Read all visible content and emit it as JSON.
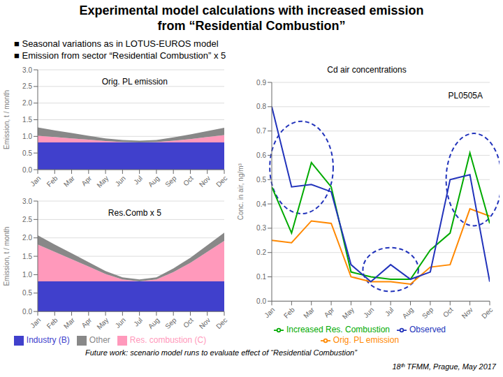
{
  "title": "Experimental model calculations with increased emission\nfrom “Residential Combustion”",
  "annotations": [
    "■ Seasonal variations as in LOTUS-EUROS model",
    "■ Emission from sector “Residential Combustion” x 5",
    "⁠Future work: scenario model runs to evaluate effect of “Residential Combustion”",
    "18ᵗʰ TFMM, Prague, May 2017"
  ],
  "chart_data": [
    {
      "type": "area",
      "stacked": true,
      "annotations": [
        "Orig. PL emission"
      ],
      "y_label": "Emission, t / month",
      "categories": [
        "Jan",
        "Feb",
        "Mar",
        "Apr",
        "May",
        "Jun",
        "Jul",
        "Aug",
        "Sep",
        "Oct",
        "Nov",
        "Dec"
      ],
      "series": [
        {
          "name": "Industry (B)",
          "color": "#4040CC",
          "values": [
            0.82,
            0.82,
            0.82,
            0.82,
            0.82,
            0.82,
            0.82,
            0.82,
            0.82,
            0.82,
            0.82,
            0.82
          ]
        },
        {
          "name": "Res. combustion (C)",
          "color": "#FF99BB",
          "values": [
            0.2,
            0.16,
            0.12,
            0.08,
            0.04,
            0.01,
            0.0,
            0.01,
            0.05,
            0.1,
            0.16,
            0.22
          ]
        },
        {
          "name": "Other",
          "color": "#888888",
          "values": [
            0.25,
            0.2,
            0.16,
            0.12,
            0.08,
            0.06,
            0.05,
            0.06,
            0.1,
            0.14,
            0.18,
            0.22
          ]
        }
      ],
      "ylim": [
        0.0,
        3.0
      ],
      "yticks": [
        {
          "value": 0,
          "label": "0.0"
        },
        0.5,
        {
          "value": 1,
          "label": "1.0"
        },
        1.5,
        {
          "value": 2,
          "label": "2.0"
        },
        2.5,
        {
          "value": 3,
          "label": "3.0"
        }
      ],
      "grid": true
    },
    {
      "type": "area",
      "stacked": true,
      "annotations": [
        "Res.Comb x 5"
      ],
      "y_label": "Emission, t / month",
      "categories": [
        "Jan",
        "Feb",
        "Mar",
        "Apr",
        "May",
        "Jun",
        "Jul",
        "Aug",
        "Sep",
        "Oct",
        "Nov",
        "Dec"
      ],
      "series": [
        {
          "name": "Industry (B)",
          "color": "#4040CC",
          "values": [
            0.82,
            0.82,
            0.82,
            0.82,
            0.82,
            0.82,
            0.82,
            0.82,
            0.82,
            0.82,
            0.82,
            0.82
          ]
        },
        {
          "name": "Res. combustion (C)",
          "color": "#FF99BB",
          "values": [
            1.0,
            0.8,
            0.6,
            0.4,
            0.2,
            0.05,
            0.0,
            0.05,
            0.25,
            0.5,
            0.8,
            1.1
          ]
        },
        {
          "name": "Other",
          "color": "#888888",
          "values": [
            0.25,
            0.2,
            0.16,
            0.12,
            0.08,
            0.06,
            0.05,
            0.06,
            0.1,
            0.14,
            0.18,
            0.22
          ]
        }
      ],
      "ylim": [
        0.0,
        3.0
      ],
      "yticks": [
        {
          "value": 0,
          "label": "0.0"
        },
        0.5,
        {
          "value": 1,
          "label": "1.0"
        },
        1.5,
        {
          "value": 2,
          "label": "2.0"
        },
        2.5,
        {
          "value": 3,
          "label": "3.0"
        }
      ],
      "grid": true,
      "legend": "bottom"
    },
    {
      "type": "line",
      "title": "Cd air concentrations",
      "annotations": [
        "PL0505A"
      ],
      "y_label": "Conc. in air, ng/m³",
      "categories": [
        "Jan",
        "Feb",
        "Mar",
        "Apr",
        "May",
        "Jun",
        "Jul",
        "Aug",
        "Sep",
        "Oct",
        "Nov",
        "Dec"
      ],
      "series": [
        {
          "name": "Orig. PL emission",
          "color": "#FF8800",
          "values": [
            0.25,
            0.24,
            0.33,
            0.32,
            0.1,
            0.08,
            0.08,
            0.07,
            0.14,
            0.15,
            0.38,
            0.35
          ]
        },
        {
          "name": "Increased Res. Combustion",
          "color": "#00AA00",
          "values": [
            0.47,
            0.28,
            0.57,
            0.47,
            0.12,
            0.1,
            0.09,
            0.09,
            0.21,
            0.28,
            0.61,
            0.32
          ]
        },
        {
          "name": "Observed",
          "color": "#2233BB",
          "values": [
            0.8,
            0.47,
            0.48,
            0.45,
            0.15,
            0.08,
            0.15,
            0.09,
            0.12,
            0.5,
            0.52,
            0.08
          ]
        }
      ],
      "ellipses": [
        {
          "x": 1.5,
          "y": 0.55,
          "width": 3.2,
          "height": 0.38,
          "color": "#2233BB",
          "line_style": "dashed"
        },
        {
          "x": 6.0,
          "y": 0.13,
          "width": 2.8,
          "height": 0.18,
          "color": "#2233BB",
          "line_style": "dashed"
        },
        {
          "x": 10.2,
          "y": 0.5,
          "width": 2.8,
          "height": 0.38,
          "color": "#2233BB",
          "line_style": "dashed"
        }
      ],
      "ylim": [
        0.0,
        0.9
      ],
      "yticks": [
        {
          "value": 0,
          "label": "0.0"
        },
        0.1,
        0.2,
        0.3,
        0.4,
        0.5,
        0.6,
        0.7,
        0.8,
        0.9
      ],
      "grid": true,
      "legend": "bottom"
    }
  ]
}
